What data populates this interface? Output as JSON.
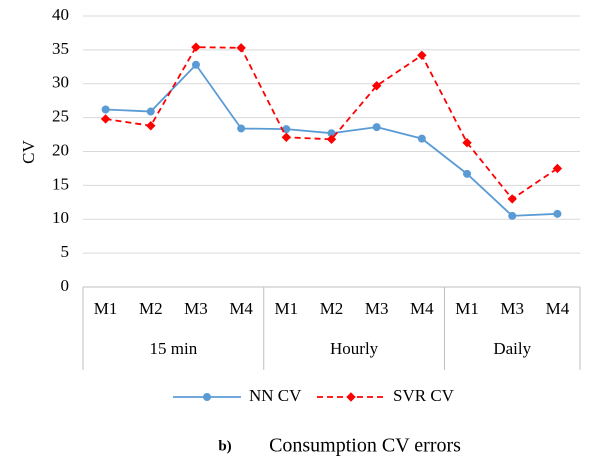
{
  "chart_data": {
    "type": "line",
    "ylabel": "CV",
    "groups": [
      {
        "label": "15 min",
        "categories": [
          "M1",
          "M2",
          "M3",
          "M4"
        ]
      },
      {
        "label": "Hourly",
        "categories": [
          "M1",
          "M2",
          "M3",
          "M4"
        ]
      },
      {
        "label": "Daily",
        "categories": [
          "M1",
          "M3",
          "M4"
        ]
      }
    ],
    "series": [
      {
        "name": "NN CV",
        "color": "#5b9bd5",
        "line_style": "solid",
        "marker": "circle",
        "values": [
          26.2,
          25.9,
          32.8,
          23.4,
          23.3,
          22.7,
          23.6,
          21.9,
          16.7,
          10.5,
          10.8
        ]
      },
      {
        "name": "SVR CV",
        "color": "#ff0000",
        "line_style": "dashed",
        "marker": "diamond",
        "values": [
          24.8,
          23.8,
          35.4,
          35.3,
          22.1,
          21.8,
          29.7,
          34.2,
          21.3,
          13.0,
          17.5
        ]
      }
    ],
    "ylim": [
      0,
      40
    ],
    "yticks": [
      0,
      5,
      10,
      15,
      20,
      25,
      30,
      35,
      40
    ],
    "grid": true,
    "legend": "bottom",
    "caption": {
      "label": "b)",
      "text": "Consumption CV errors"
    }
  }
}
